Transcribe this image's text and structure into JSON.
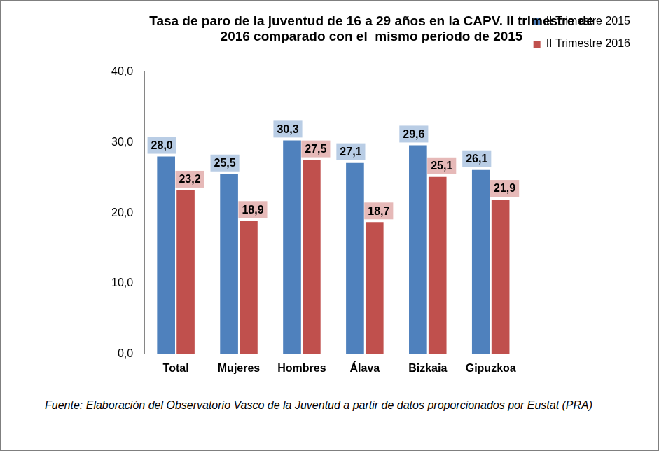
{
  "chart_data": {
    "type": "bar",
    "title": [
      "Tasa de paro de la juventud de 16 a 29 años en la CAPV. II trimestre de",
      "2016 comparado con el  mismo periodo de 2015"
    ],
    "source": "Fuente: Elaboración del Observatorio Vasco de la Juventud a partir de datos proporcionados por Eustat (PRA)",
    "categories": [
      "Total",
      "Mujeres",
      "Hombres",
      "Álava",
      "Bizkaia",
      "Gipuzkoa"
    ],
    "series": [
      {
        "name": "II Trimestre 2015",
        "color": "#4f81bd",
        "values": [
          28.0,
          25.5,
          30.3,
          27.1,
          29.6,
          26.1
        ],
        "value_labels": [
          "28,0",
          "25,5",
          "30,3",
          "27,1",
          "29,6",
          "26,1"
        ]
      },
      {
        "name": "II Trimestre 2016",
        "color": "#c0504d",
        "values": [
          23.2,
          18.9,
          27.5,
          18.7,
          25.1,
          21.9
        ],
        "value_labels": [
          "23,2",
          "18,9",
          "27,5",
          "18,7",
          "25,1",
          "21,9"
        ]
      }
    ],
    "ylim": [
      0,
      40
    ],
    "yticks": [
      {
        "value": 0,
        "label": "0,0"
      },
      {
        "value": 10,
        "label": "10,0"
      },
      {
        "value": 20,
        "label": "20,0"
      },
      {
        "value": 30,
        "label": "30,0"
      },
      {
        "value": 40,
        "label": "40,0"
      }
    ],
    "grid": false,
    "legend": "right",
    "data_labels": true
  }
}
